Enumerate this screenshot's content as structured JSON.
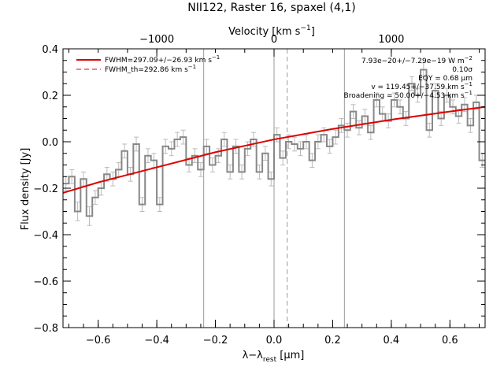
{
  "chart_data": {
    "type": "line",
    "title": "NII122, Raster 16, spaxel (4,1)",
    "xlabel_main": "λ−λ",
    "xlabel_sub": "rest",
    "xlabel_unit_pre": " [",
    "xlabel_unit_mu": "μ",
    "xlabel_unit_post": "m]",
    "ylabel": "Flux density [Jy]",
    "top_axis_label": "Velocity [km s",
    "top_axis_label_sup": "−1",
    "top_axis_label_end": "]",
    "xlim": [
      -0.72,
      0.72
    ],
    "ylim": [
      -0.8,
      0.4
    ],
    "x_ticks": [
      -0.6,
      -0.4,
      -0.2,
      0.0,
      0.2,
      0.4,
      0.6
    ],
    "x_tick_labels": [
      "−0.6",
      "−0.4",
      "−0.2",
      "0.0",
      "0.2",
      "0.4",
      "0.6"
    ],
    "y_ticks": [
      -0.8,
      -0.6,
      -0.4,
      -0.2,
      0.0,
      0.2,
      0.4
    ],
    "y_tick_labels": [
      "−0.8",
      "−0.6",
      "−0.4",
      "−0.2",
      "0.0",
      "0.2",
      "0.4"
    ],
    "top_ticks_velocity": [
      -1000,
      0,
      1000
    ],
    "top_tick_labels": [
      "−1000",
      "0",
      "1000"
    ],
    "top_tick_x_positions_um": [
      -0.4,
      0.0,
      0.4
    ],
    "vertical_lines_solid_um": [
      -0.24,
      0.0,
      0.24
    ],
    "vertical_line_dashed_um": 0.045,
    "legend": [
      {
        "label": "FWHM=297.09+/−26.93 km s",
        "sup": "−1",
        "style": "solid"
      },
      {
        "label": "FWHM_th=292.86 km s",
        "sup": "−1",
        "style": "dashed"
      }
    ],
    "annotations": [
      "7.93e−20+/−7.29e−19 W m",
      "0.10σ",
      "EQY = 0.68 μm",
      "v = 119.45+/−37.59 km s",
      "Broadening = 50.00+/−4.53 km s"
    ],
    "annotation_sup_first": "−2",
    "annotation_sup_v": "−1",
    "annotation_sup_broad": "−1",
    "step_series": {
      "name": "Flux",
      "x": [
        -0.72,
        -0.7,
        -0.68,
        -0.66,
        -0.64,
        -0.62,
        -0.6,
        -0.58,
        -0.56,
        -0.54,
        -0.52,
        -0.5,
        -0.48,
        -0.46,
        -0.44,
        -0.42,
        -0.4,
        -0.38,
        -0.36,
        -0.34,
        -0.32,
        -0.3,
        -0.28,
        -0.26,
        -0.24,
        -0.22,
        -0.2,
        -0.18,
        -0.16,
        -0.14,
        -0.12,
        -0.1,
        -0.08,
        -0.06,
        -0.04,
        -0.02,
        0.0,
        0.02,
        0.04,
        0.06,
        0.08,
        0.1,
        0.12,
        0.14,
        0.16,
        0.18,
        0.2,
        0.22,
        0.24,
        0.26,
        0.28,
        0.3,
        0.32,
        0.34,
        0.36,
        0.38,
        0.4,
        0.42,
        0.44,
        0.46,
        0.48,
        0.5,
        0.52,
        0.54,
        0.56,
        0.58,
        0.6,
        0.62,
        0.64,
        0.66,
        0.68,
        0.7
      ],
      "y": [
        -0.18,
        -0.15,
        -0.3,
        -0.16,
        -0.32,
        -0.24,
        -0.2,
        -0.14,
        -0.16,
        -0.12,
        -0.04,
        -0.14,
        -0.01,
        -0.27,
        -0.06,
        -0.08,
        -0.27,
        -0.02,
        -0.03,
        0.01,
        0.02,
        -0.1,
        -0.06,
        -0.12,
        -0.02,
        -0.1,
        -0.06,
        0.01,
        -0.13,
        -0.02,
        -0.13,
        -0.03,
        0.01,
        -0.13,
        -0.05,
        -0.16,
        0.03,
        -0.07,
        0.0,
        -0.01,
        -0.03,
        0.0,
        -0.08,
        0.0,
        0.03,
        -0.02,
        0.02,
        0.07,
        0.05,
        0.13,
        0.06,
        0.11,
        0.04,
        0.18,
        0.12,
        0.09,
        0.18,
        0.15,
        0.1,
        0.25,
        0.2,
        0.31,
        0.05,
        0.22,
        0.1,
        0.2,
        0.15,
        0.11,
        0.16,
        0.07,
        0.17,
        -0.08
      ],
      "errors": [
        0.03,
        0.03,
        0.04,
        0.03,
        0.04,
        0.03,
        0.03,
        0.03,
        0.03,
        0.03,
        0.03,
        0.03,
        0.03,
        0.03,
        0.03,
        0.03,
        0.03,
        0.03,
        0.03,
        0.03,
        0.03,
        0.03,
        0.03,
        0.03,
        0.03,
        0.03,
        0.03,
        0.03,
        0.03,
        0.03,
        0.03,
        0.03,
        0.03,
        0.03,
        0.03,
        0.03,
        0.03,
        0.03,
        0.03,
        0.03,
        0.03,
        0.03,
        0.03,
        0.03,
        0.03,
        0.03,
        0.03,
        0.03,
        0.03,
        0.03,
        0.03,
        0.03,
        0.03,
        0.03,
        0.03,
        0.03,
        0.03,
        0.03,
        0.03,
        0.03,
        0.03,
        0.03,
        0.03,
        0.03,
        0.03,
        0.03,
        0.03,
        0.03,
        0.03,
        0.03,
        0.03,
        0.03
      ]
    },
    "fit_series": {
      "name": "Fit",
      "x": [
        -0.72,
        -0.6,
        -0.4,
        -0.2,
        0.0,
        0.2,
        0.4,
        0.6,
        0.72
      ],
      "y": [
        -0.22,
        -0.175,
        -0.11,
        -0.045,
        0.01,
        0.055,
        0.095,
        0.13,
        0.15
      ]
    },
    "colors": {
      "fit": "#dd0000",
      "steps": "#888888",
      "error_bars": "#bbbbbb",
      "axes": "#000000",
      "vlines": "#999999"
    }
  }
}
